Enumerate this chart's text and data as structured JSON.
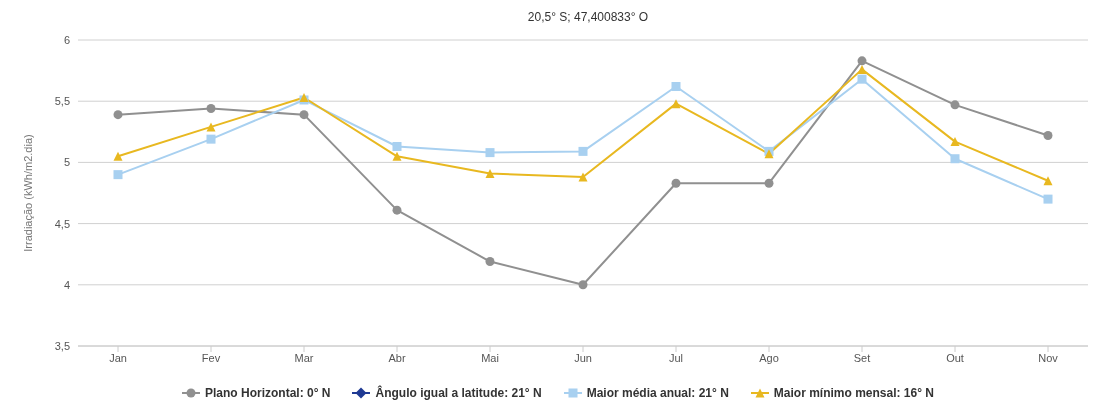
{
  "chart_data": {
    "type": "line",
    "title": "20,5° S; 47,400833° O",
    "ylabel": "Irradiação (kWh/m2.dia)",
    "categories": [
      "Jan",
      "Fev",
      "Mar",
      "Abr",
      "Mai",
      "Jun",
      "Jul",
      "Ago",
      "Set",
      "Out",
      "Nov"
    ],
    "series": [
      {
        "name": "Plano Horizontal: 0° N",
        "color": "#909090",
        "marker": "circle",
        "values": [
          5.39,
          5.44,
          5.39,
          4.61,
          4.19,
          4.0,
          4.83,
          4.83,
          5.83,
          5.47,
          5.22
        ]
      },
      {
        "name": "Ângulo igual a latitude: 21° N",
        "color": "#1f3a93",
        "marker": "diamond",
        "values": [
          null,
          null,
          null,
          null,
          null,
          null,
          null,
          null,
          null,
          null,
          null
        ]
      },
      {
        "name": "Maior média anual: 21° N",
        "color": "#a8d0f0",
        "marker": "square",
        "values": [
          4.9,
          5.19,
          5.51,
          5.13,
          5.08,
          5.09,
          5.62,
          5.09,
          5.68,
          5.03,
          4.7
        ]
      },
      {
        "name": "Maior mínimo mensal: 16° N",
        "color": "#e8b820",
        "marker": "triangle",
        "values": [
          5.05,
          5.29,
          5.53,
          5.05,
          4.91,
          4.88,
          5.48,
          5.07,
          5.76,
          5.17,
          4.85
        ]
      }
    ],
    "ylim": [
      3.5,
      6
    ],
    "yticks": [
      {
        "value": 3.5,
        "label": "3,5"
      },
      4,
      {
        "value": 4.5,
        "label": "4,5"
      },
      5,
      {
        "value": 5.5,
        "label": "5,5"
      },
      6
    ],
    "grid": "y",
    "legend": "bottom"
  }
}
